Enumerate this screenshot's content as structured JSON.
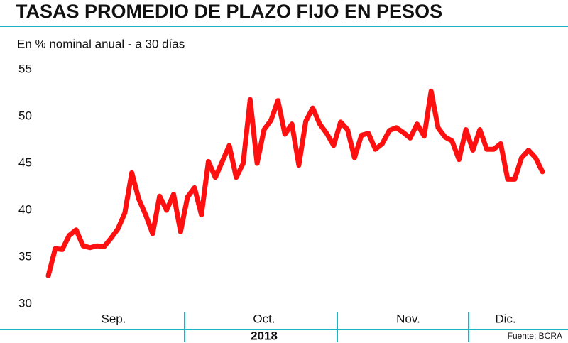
{
  "chart_data": {
    "type": "line",
    "title": "TASAS PROMEDIO DE PLAZO FIJO EN PESOS",
    "subtitle": "En % nominal anual - a 30 días",
    "values": [
      33.0,
      35.9,
      35.8,
      37.3,
      37.9,
      36.2,
      36.0,
      36.2,
      36.1,
      37.0,
      38.0,
      39.7,
      44.0,
      41.2,
      39.5,
      37.5,
      41.5,
      40.0,
      41.7,
      37.7,
      41.4,
      42.4,
      39.5,
      45.2,
      43.5,
      45.2,
      46.9,
      43.5,
      45.0,
      51.8,
      45.0,
      48.6,
      49.6,
      51.7,
      48.1,
      49.2,
      44.8,
      49.5,
      50.9,
      49.2,
      48.2,
      46.9,
      49.4,
      48.6,
      45.6,
      48.0,
      48.2,
      46.5,
      47.1,
      48.5,
      48.8,
      48.3,
      47.7,
      49.2,
      47.9,
      52.7,
      48.8,
      47.8,
      47.4,
      45.4,
      48.6,
      46.4,
      48.6,
      46.5,
      46.5,
      47.1,
      43.3,
      43.3,
      45.6,
      46.4,
      45.6,
      44.1
    ],
    "color": "#ff1010",
    "ylim": [
      30,
      55
    ],
    "yticks": [
      30,
      35,
      40,
      45,
      50,
      55
    ],
    "months": [
      "Sep.",
      "Oct.",
      "Nov.",
      "Dic."
    ],
    "year": "2018",
    "source": "Fuente: BCRA",
    "grid": false
  }
}
